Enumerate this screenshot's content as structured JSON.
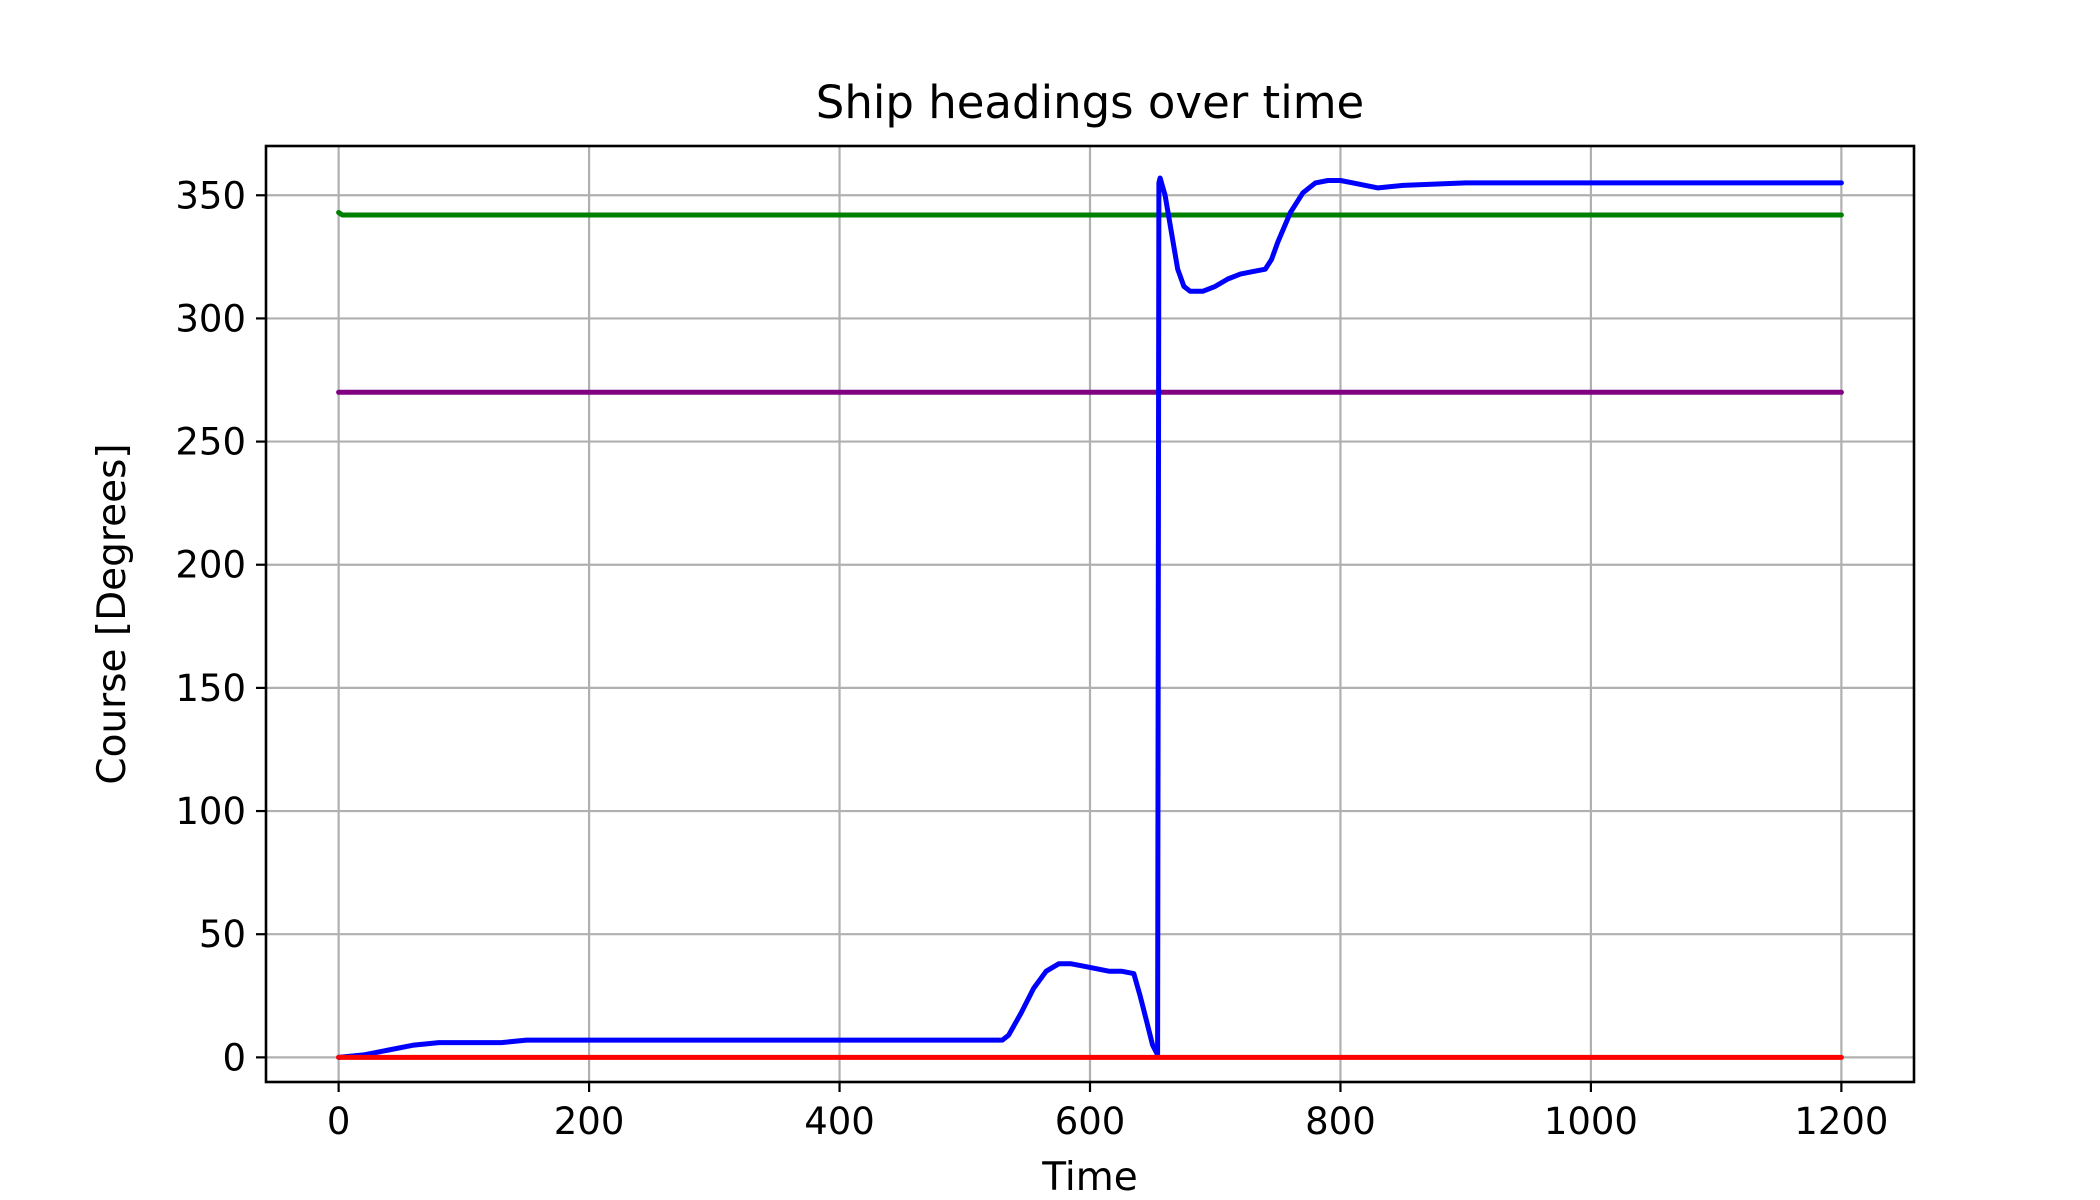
{
  "chart_data": {
    "type": "line",
    "title": "Ship headings over time",
    "xlabel": "Time",
    "ylabel": "Course [Degrees]",
    "xlim": [
      -58,
      1258
    ],
    "ylim": [
      -10,
      370
    ],
    "xticks": [
      0,
      200,
      400,
      600,
      800,
      1000,
      1200
    ],
    "yticks": [
      0,
      50,
      100,
      150,
      200,
      250,
      300,
      350
    ],
    "grid": true,
    "legend": null,
    "series": [
      {
        "color": "#800080",
        "x": [
          0,
          1200
        ],
        "y": [
          270,
          270
        ]
      },
      {
        "color": "#008000",
        "x": [
          0,
          3,
          1200
        ],
        "y": [
          343,
          342,
          342
        ]
      },
      {
        "color": "#0000ff",
        "x": [
          0,
          20,
          40,
          60,
          80,
          100,
          130,
          150,
          200,
          300,
          400,
          500,
          530,
          535,
          545,
          555,
          565,
          575,
          585,
          595,
          605,
          615,
          625,
          635,
          640,
          645,
          650,
          654,
          655,
          656,
          660,
          665,
          670,
          675,
          680,
          690,
          700,
          710,
          720,
          730,
          740,
          745,
          750,
          760,
          770,
          780,
          790,
          800,
          810,
          820,
          830,
          850,
          900,
          1000,
          1100,
          1200
        ],
        "y": [
          0,
          1,
          3,
          5,
          6,
          6,
          6,
          7,
          7,
          7,
          7,
          7,
          7,
          9,
          18,
          28,
          35,
          38,
          38,
          37,
          36,
          35,
          35,
          34,
          25,
          15,
          5,
          1,
          355,
          357,
          350,
          335,
          320,
          313,
          311,
          311,
          313,
          316,
          318,
          319,
          320,
          324,
          331,
          343,
          351,
          355,
          356,
          356,
          355,
          354,
          353,
          354,
          355,
          355,
          355,
          355
        ]
      },
      {
        "color": "#ff0000",
        "x": [
          0,
          1200
        ],
        "y": [
          0,
          0
        ]
      }
    ]
  }
}
